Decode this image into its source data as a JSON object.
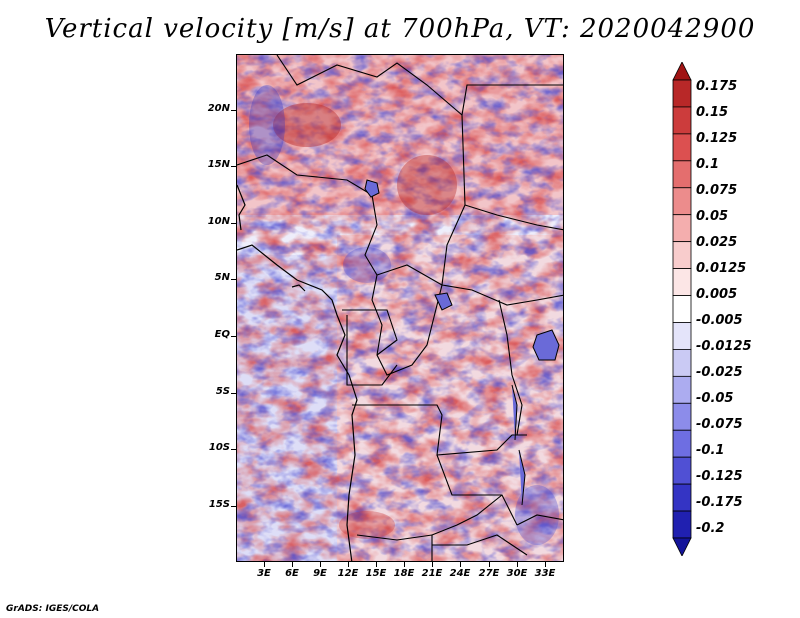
{
  "title": "Vertical velocity [m/s] at 700hPa, VT: 2020042900",
  "credit": "GrADS: IGES/COLA",
  "map": {
    "variable": "Vertical velocity",
    "units": "m/s",
    "level": "700hPa",
    "valid_time": "2020042900",
    "lat_labels": [
      "20N",
      "15N",
      "10N",
      "5N",
      "EQ",
      "5S",
      "10S",
      "15S"
    ],
    "lon_labels": [
      "3E",
      "6E",
      "9E",
      "12E",
      "15E",
      "18E",
      "21E",
      "24E",
      "27E",
      "30E",
      "33E"
    ]
  },
  "colorbar": {
    "levels": [
      "0.175",
      "0.15",
      "0.125",
      "0.1",
      "0.075",
      "0.05",
      "0.025",
      "0.0125",
      "0.005",
      "-0.005",
      "-0.0125",
      "-0.025",
      "-0.05",
      "-0.075",
      "-0.1",
      "-0.125",
      "-0.175",
      "-0.2"
    ],
    "colors": [
      "#a01414",
      "#b82828",
      "#cc3c3c",
      "#dc5050",
      "#e46e6e",
      "#ec8c8c",
      "#f4aeae",
      "#f8cccc",
      "#fce6e6",
      "#ffffff",
      "#e4e4fa",
      "#cacaf4",
      "#acacf0",
      "#8c8cea",
      "#6e6ee2",
      "#5050d4",
      "#3434c4",
      "#2020b0",
      "#14149a"
    ]
  }
}
